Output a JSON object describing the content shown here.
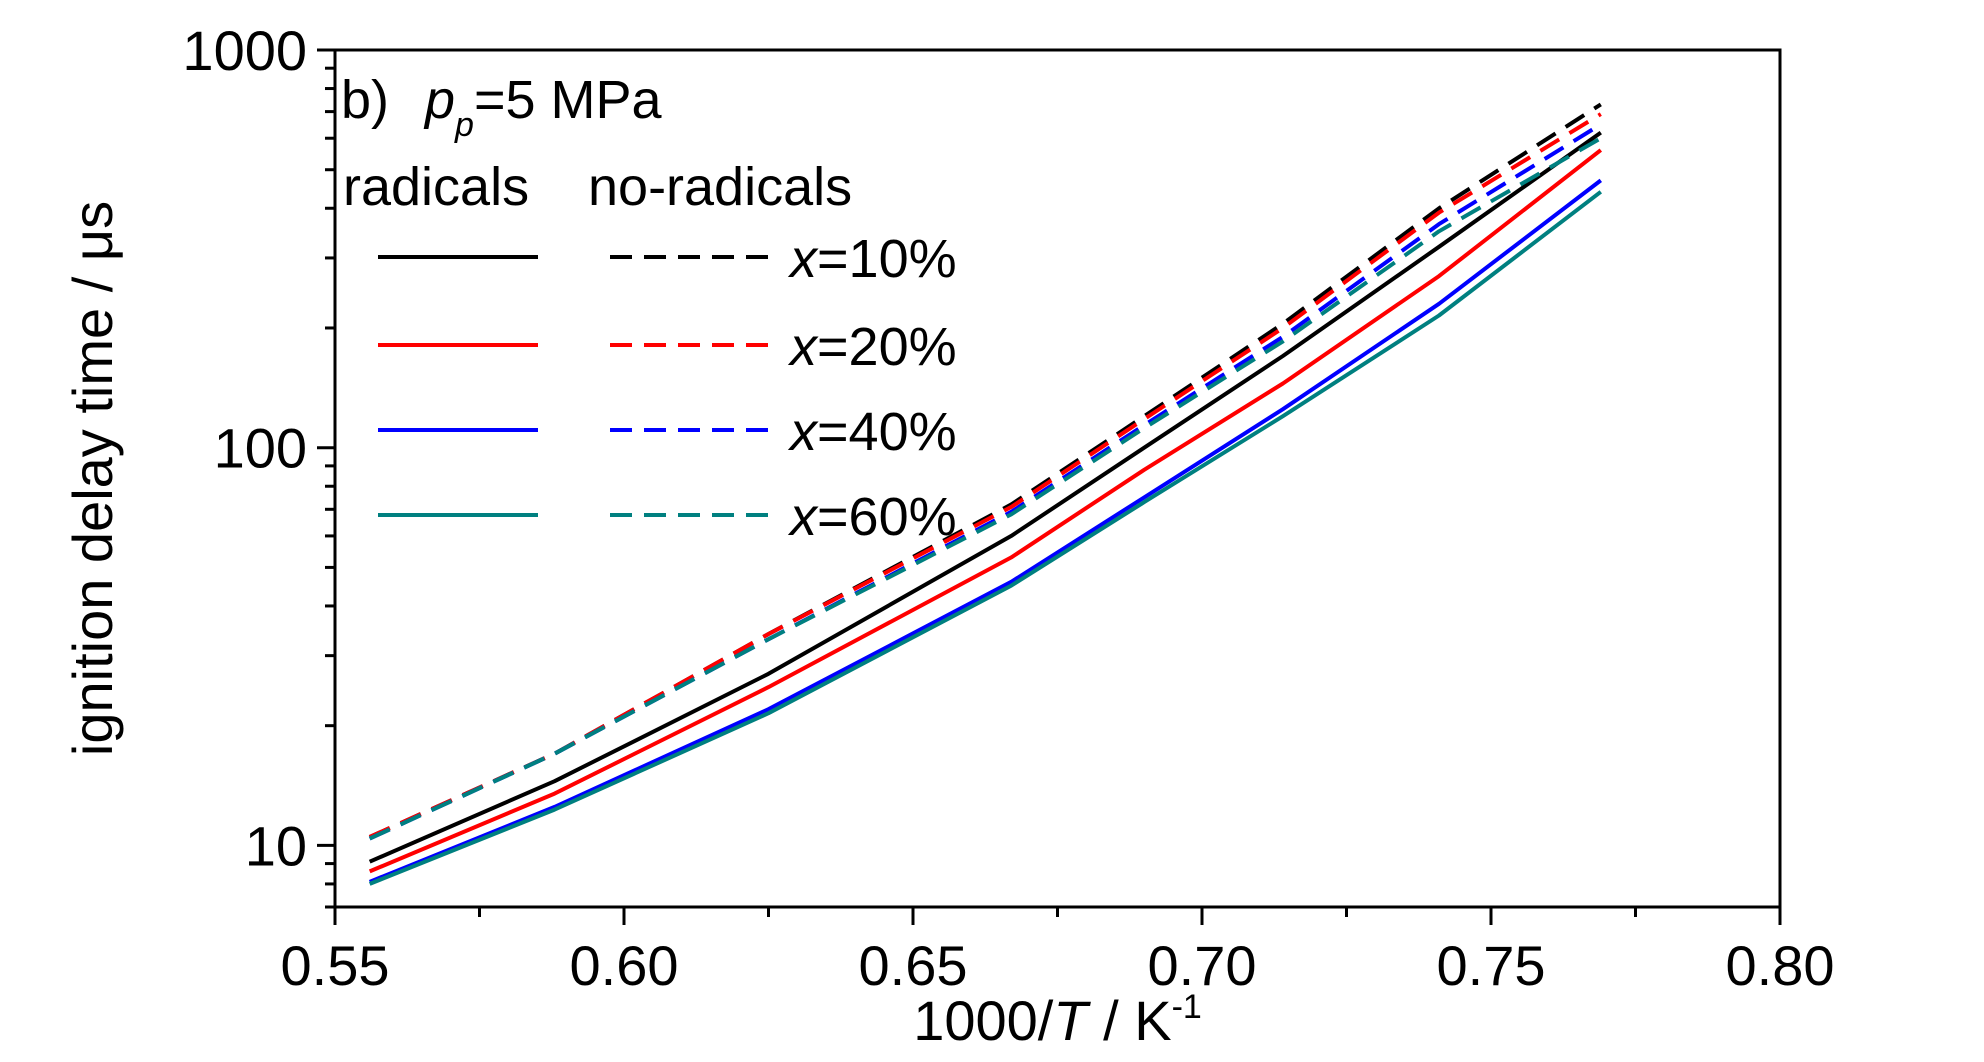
{
  "chart_data": {
    "type": "line",
    "panel_label": "b)",
    "condition_var": "p",
    "condition_sub": "p",
    "condition_value": "=5 MPa",
    "xlabel_pre": "1000/",
    "xlabel_var": "T",
    "xlabel_post": " / K",
    "xlabel_sup": "-1",
    "ylabel": "ignition delay time / μs",
    "xlim": [
      0.55,
      0.8
    ],
    "ylim": [
      7,
      1000
    ],
    "yscale": "log",
    "x_ticks": [
      0.55,
      0.6,
      0.65,
      0.7,
      0.75,
      0.8
    ],
    "x_tick_labels": [
      "0.55",
      "0.60",
      "0.65",
      "0.70",
      "0.75",
      "0.80"
    ],
    "y_ticks": [
      10,
      100,
      1000
    ],
    "y_tick_labels": [
      "10",
      "100",
      "1000"
    ],
    "legend": {
      "header_solid": "radicals",
      "header_dashed": "no-radicals",
      "entries": [
        {
          "var": "x",
          "label": "=10%",
          "color": "#000000"
        },
        {
          "var": "x",
          "label": "=20%",
          "color": "#ff0000"
        },
        {
          "var": "x",
          "label": "=40%",
          "color": "#0000ff"
        },
        {
          "var": "x",
          "label": "=60%",
          "color": "#008080"
        }
      ]
    },
    "x": [
      0.556,
      0.588,
      0.625,
      0.667,
      0.69,
      0.714,
      0.741,
      0.769
    ],
    "series": [
      {
        "group": "x=10%",
        "style": "solid",
        "color": "#000000",
        "values": [
          9.1,
          14.5,
          27,
          60,
          100,
          170,
          320,
          620
        ]
      },
      {
        "group": "x=20%",
        "style": "solid",
        "color": "#ff0000",
        "values": [
          8.6,
          13.5,
          25,
          53,
          88,
          145,
          270,
          560
        ]
      },
      {
        "group": "x=40%",
        "style": "solid",
        "color": "#0000ff",
        "values": [
          8.1,
          12.5,
          22,
          46,
          75,
          125,
          230,
          470
        ]
      },
      {
        "group": "x=60%",
        "style": "solid",
        "color": "#008080",
        "values": [
          8.0,
          12.3,
          21.5,
          45,
          73,
          120,
          215,
          440
        ]
      },
      {
        "group": "x=10%",
        "style": "dashed",
        "color": "#000000",
        "values": [
          10.5,
          17,
          34,
          72,
          120,
          205,
          400,
          730
        ]
      },
      {
        "group": "x=20%",
        "style": "dashed",
        "color": "#ff0000",
        "values": [
          10.5,
          17,
          34,
          71,
          118,
          200,
          390,
          690
        ]
      },
      {
        "group": "x=40%",
        "style": "dashed",
        "color": "#0000ff",
        "values": [
          10.4,
          17,
          33,
          69,
          114,
          190,
          365,
          650
        ]
      },
      {
        "group": "x=60%",
        "style": "dashed",
        "color": "#008080",
        "values": [
          10.4,
          17,
          33,
          68,
          112,
          185,
          350,
          600
        ]
      }
    ]
  }
}
